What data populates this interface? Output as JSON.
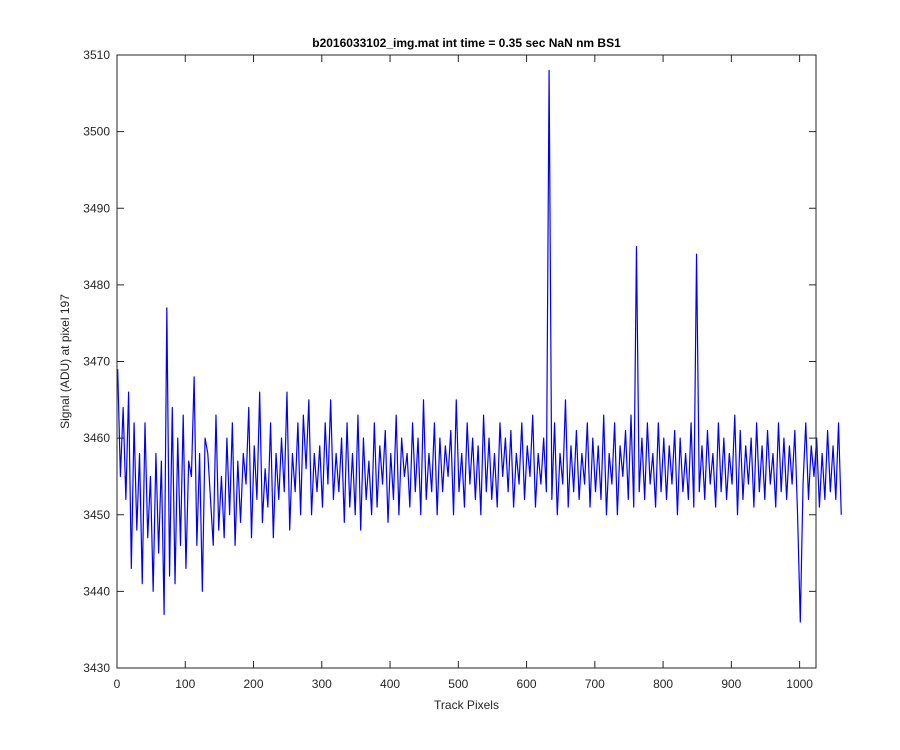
{
  "chart_data": {
    "type": "line",
    "title": "b2016033102_img.mat int time = 0.35 sec  NaN nm BS1",
    "xlabel": "Track Pixels",
    "ylabel": "Signal (ADU) at pixel 197",
    "xlim": [
      0,
      1024
    ],
    "ylim": [
      3430,
      3510
    ],
    "x_ticks": [
      0,
      100,
      200,
      300,
      400,
      500,
      600,
      700,
      800,
      900,
      1000
    ],
    "y_ticks": [
      3430,
      3440,
      3450,
      3460,
      3470,
      3480,
      3490,
      3500,
      3510
    ],
    "grid": false,
    "series_color": "#0000ff",
    "series": [
      {
        "x_start": 1,
        "x_step": 4,
        "values": [
          3469,
          3455,
          3464,
          3452,
          3466,
          3443,
          3462,
          3448,
          3458,
          3441,
          3462,
          3447,
          3455,
          3440,
          3458,
          3445,
          3457,
          3437,
          3477,
          3442,
          3464,
          3441,
          3460,
          3446,
          3463,
          3443,
          3457,
          3455,
          3468,
          3446,
          3458,
          3440,
          3460,
          3458,
          3452,
          3446,
          3463,
          3448,
          3455,
          3447,
          3460,
          3450,
          3462,
          3446,
          3457,
          3449,
          3458,
          3454,
          3464,
          3447,
          3459,
          3452,
          3466,
          3449,
          3456,
          3451,
          3462,
          3447,
          3458,
          3452,
          3460,
          3453,
          3466,
          3448,
          3458,
          3453,
          3462,
          3450,
          3463,
          3456,
          3465,
          3450,
          3458,
          3453,
          3459,
          3451,
          3462,
          3454,
          3465,
          3452,
          3458,
          3453,
          3460,
          3449,
          3462,
          3451,
          3458,
          3450,
          3463,
          3448,
          3460,
          3452,
          3457,
          3450,
          3462,
          3451,
          3459,
          3454,
          3461,
          3449,
          3458,
          3452,
          3463,
          3450,
          3460,
          3455,
          3458,
          3451,
          3462,
          3453,
          3460,
          3450,
          3465,
          3452,
          3458,
          3453,
          3462,
          3450,
          3460,
          3453,
          3459,
          3455,
          3461,
          3450,
          3465,
          3453,
          3458,
          3451,
          3462,
          3454,
          3460,
          3452,
          3459,
          3450,
          3463,
          3453,
          3460,
          3452,
          3458,
          3451,
          3462,
          3455,
          3460,
          3453,
          3461,
          3451,
          3458,
          3454,
          3462,
          3452,
          3459,
          3455,
          3463,
          3451,
          3458,
          3454,
          3460,
          3453,
          3508,
          3452,
          3462,
          3450,
          3458,
          3454,
          3465,
          3451,
          3459,
          3453,
          3461,
          3452,
          3458,
          3454,
          3462,
          3451,
          3460,
          3453,
          3459,
          3452,
          3463,
          3450,
          3458,
          3454,
          3462,
          3450,
          3459,
          3455,
          3461,
          3452,
          3463,
          3451,
          3485,
          3453,
          3460,
          3452,
          3462,
          3454,
          3458,
          3451,
          3462,
          3453,
          3460,
          3452,
          3459,
          3454,
          3461,
          3450,
          3460,
          3453,
          3458,
          3452,
          3462,
          3451,
          3484,
          3453,
          3459,
          3452,
          3461,
          3454,
          3458,
          3451,
          3462,
          3453,
          3460,
          3452,
          3458,
          3454,
          3463,
          3450,
          3461,
          3452,
          3459,
          3454,
          3460,
          3451,
          3462,
          3453,
          3459,
          3452,
          3461,
          3454,
          3458,
          3451,
          3462,
          3453,
          3460,
          3452,
          3459,
          3454,
          3461,
          3450,
          3436,
          3454,
          3462,
          3452,
          3459,
          3455,
          3460,
          3451,
          3458,
          3452,
          3461,
          3453,
          3459,
          3452,
          3462,
          3450
        ]
      }
    ]
  }
}
